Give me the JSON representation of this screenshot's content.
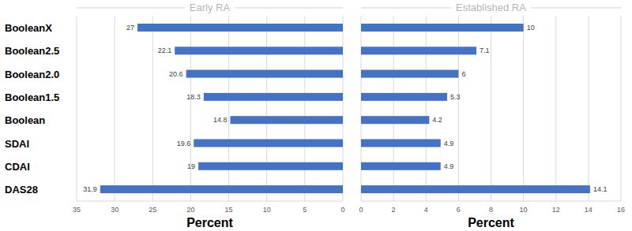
{
  "chart_data": [
    {
      "type": "bar",
      "title": "Early RA",
      "x_label": "Percent",
      "categories": [
        "BooleanX",
        "Boolean2.5",
        "Boolean2.0",
        "Boolean1.5",
        "Boolean",
        "SDAI",
        "CDAI",
        "DAS28"
      ],
      "values": [
        27,
        22.1,
        20.6,
        18.3,
        14.8,
        19.6,
        19,
        31.9
      ],
      "color": "#4472c4",
      "orientation": "horizontal",
      "data_labels": true,
      "grid": true,
      "xlim": [
        35,
        0
      ],
      "xticks": [
        35,
        30,
        25,
        20,
        15,
        10,
        5,
        0
      ]
    },
    {
      "type": "bar",
      "title": "Established RA",
      "x_label": "Percent",
      "values": [
        10,
        7.1,
        6,
        5.3,
        4.2,
        4.9,
        4.9,
        14.1
      ],
      "color": "#4472c4",
      "orientation": "horizontal",
      "data_labels": true,
      "grid": true,
      "xlim": [
        0,
        16
      ],
      "xticks": [
        0,
        2,
        4,
        6,
        8,
        10,
        12,
        14,
        16
      ]
    }
  ]
}
